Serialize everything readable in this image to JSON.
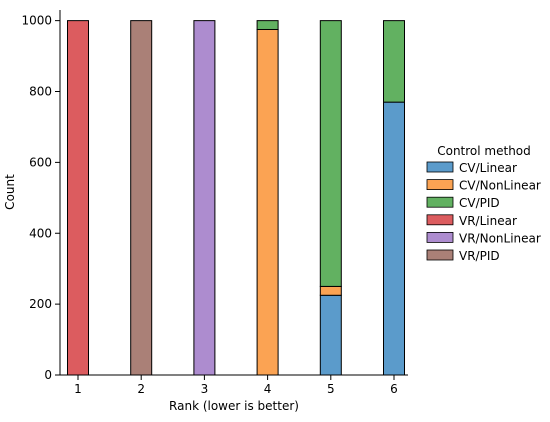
{
  "chart_data": {
    "type": "bar",
    "stacked": true,
    "title": "",
    "xlabel": "Rank (lower is better)",
    "ylabel": "Count",
    "categories": [
      1,
      2,
      3,
      4,
      5,
      6
    ],
    "ylim": [
      0,
      1030
    ],
    "yticks": [
      0,
      200,
      400,
      600,
      800,
      1000
    ],
    "grid": false,
    "legend": {
      "title": "Control method",
      "placement": "center-right"
    },
    "series": [
      {
        "name": "CV/Linear",
        "color": "#5b9bcb",
        "values": [
          0,
          0,
          0,
          0,
          225,
          770
        ]
      },
      {
        "name": "CV/NonLinear",
        "color": "#fba353",
        "values": [
          0,
          0,
          0,
          975,
          25,
          0
        ]
      },
      {
        "name": "CV/PID",
        "color": "#62b161",
        "values": [
          0,
          0,
          0,
          25,
          750,
          230
        ]
      },
      {
        "name": "VR/Linear",
        "color": "#dc5c5f",
        "values": [
          1000,
          0,
          0,
          0,
          0,
          0
        ]
      },
      {
        "name": "VR/NonLinear",
        "color": "#ad8ccf",
        "values": [
          0,
          0,
          1000,
          0,
          0,
          0
        ]
      },
      {
        "name": "VR/PID",
        "color": "#aa8077",
        "values": [
          0,
          1000,
          0,
          0,
          0,
          0
        ]
      }
    ]
  }
}
